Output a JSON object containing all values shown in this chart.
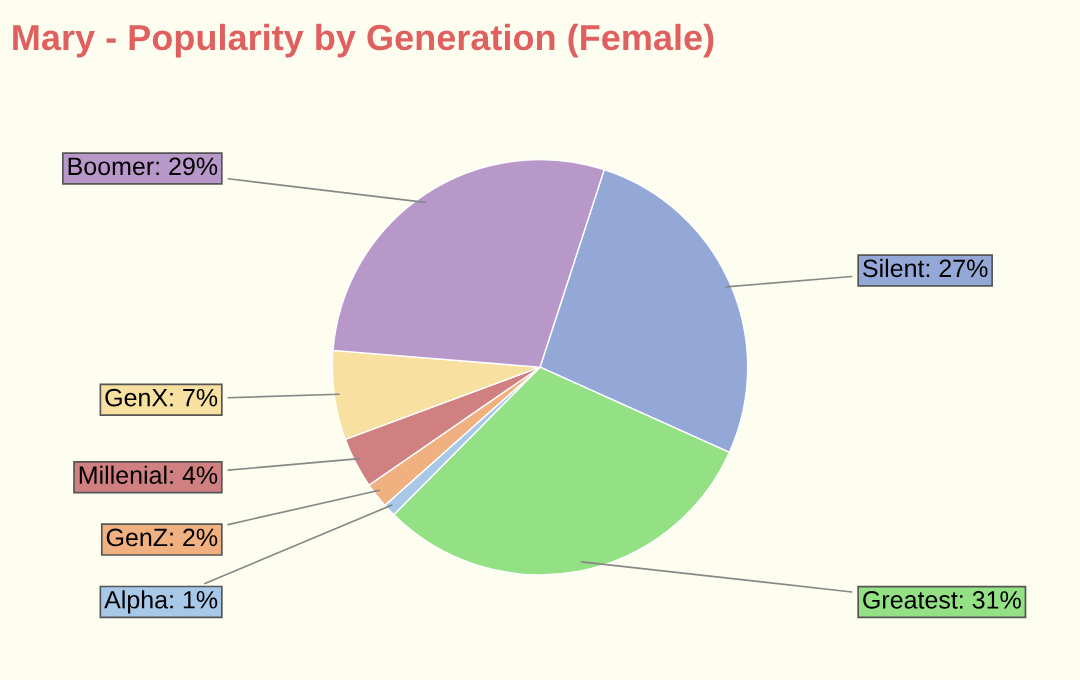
{
  "chart_data": {
    "type": "pie",
    "title": "Mary - Popularity by Generation (Female)",
    "categories": [
      "Silent",
      "Greatest",
      "Alpha",
      "GenZ",
      "Millenial",
      "GenX",
      "Boomer"
    ],
    "values": [
      27,
      31,
      1,
      2,
      4,
      7,
      29
    ],
    "value_labels": [
      "27%",
      "31%",
      "1%",
      "2%",
      "4%",
      "7%",
      "29%"
    ],
    "colors": [
      "#94a8d8",
      "#94e084",
      "#a8c8e8",
      "#f0b080",
      "#d08080",
      "#f8e0a0",
      "#b898c8"
    ],
    "legend": false
  }
}
